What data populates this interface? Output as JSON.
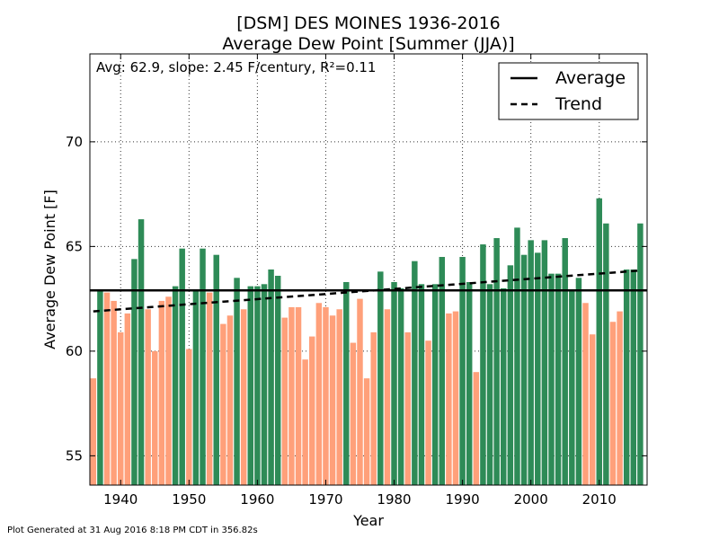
{
  "footer": "Plot Generated at 31 Aug 2016 8:18 PM CDT in 356.82s",
  "chart_data": {
    "type": "bar",
    "title": "[DSM] DES MOINES 1936-2016",
    "subtitle": "Average Dew Point [Summer (JJA)]",
    "xlabel": "Year",
    "ylabel": "Average Dew Point [F]",
    "annotation": "Avg: 62.9, slope: 2.45 F/century, R²=0.11",
    "xlim": [
      1935.5,
      2017.0
    ],
    "ylim": [
      53.6,
      74.2
    ],
    "xticks": [
      1940,
      1950,
      1960,
      1970,
      1980,
      1990,
      2000,
      2010
    ],
    "yticks": [
      55,
      60,
      65,
      70
    ],
    "grid": true,
    "legend_position": "top-right",
    "legend": [
      {
        "label": "Average",
        "style": "solid"
      },
      {
        "label": "Trend",
        "style": "dashed"
      }
    ],
    "average": 62.9,
    "trend": {
      "x": [
        1936,
        2016
      ],
      "y": [
        61.9,
        63.85
      ]
    },
    "colors": {
      "above": "#2e8b57",
      "below": "#ffa07a"
    },
    "x": [
      1936,
      1937,
      1938,
      1939,
      1940,
      1941,
      1942,
      1943,
      1944,
      1945,
      1946,
      1947,
      1948,
      1949,
      1950,
      1951,
      1952,
      1953,
      1954,
      1955,
      1956,
      1957,
      1958,
      1959,
      1960,
      1961,
      1962,
      1963,
      1964,
      1965,
      1966,
      1967,
      1968,
      1969,
      1970,
      1971,
      1972,
      1973,
      1974,
      1975,
      1976,
      1977,
      1978,
      1979,
      1980,
      1981,
      1982,
      1983,
      1984,
      1985,
      1986,
      1987,
      1988,
      1989,
      1990,
      1991,
      1992,
      1993,
      1994,
      1995,
      1996,
      1997,
      1998,
      1999,
      2000,
      2001,
      2002,
      2003,
      2004,
      2005,
      2006,
      2007,
      2008,
      2009,
      2010,
      2011,
      2012,
      2013,
      2014,
      2015,
      2016
    ],
    "values": [
      58.7,
      62.9,
      62.8,
      62.4,
      60.9,
      61.8,
      64.4,
      66.3,
      62.0,
      60.0,
      62.4,
      62.6,
      63.1,
      64.9,
      60.1,
      62.9,
      64.9,
      62.8,
      64.6,
      61.3,
      61.7,
      63.5,
      62.0,
      63.1,
      63.1,
      63.2,
      63.9,
      63.6,
      61.6,
      62.1,
      62.1,
      59.6,
      60.7,
      62.3,
      62.1,
      61.7,
      62.0,
      63.3,
      60.4,
      62.5,
      58.7,
      60.9,
      63.8,
      62.0,
      63.3,
      63.0,
      60.9,
      64.3,
      63.2,
      60.5,
      63.2,
      64.5,
      61.8,
      61.9,
      64.5,
      63.3,
      59.0,
      65.1,
      63.2,
      65.4,
      63.0,
      64.1,
      65.9,
      64.6,
      65.3,
      64.7,
      65.3,
      63.7,
      63.7,
      65.4,
      62.9,
      63.5,
      62.3,
      60.8,
      67.3,
      66.1,
      61.4,
      61.9,
      63.9,
      63.9,
      66.1
    ]
  }
}
